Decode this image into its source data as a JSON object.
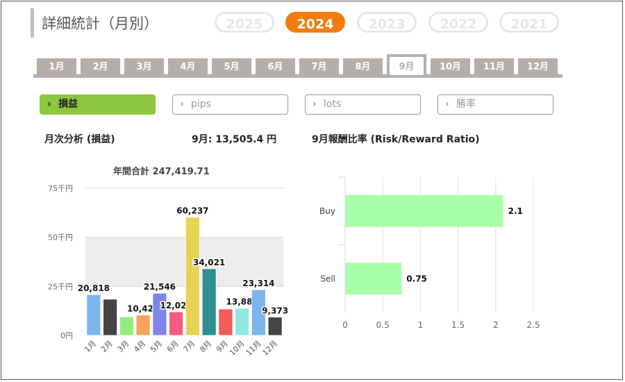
{
  "page": {
    "title": "詳細統計（月別）"
  },
  "years": [
    {
      "label": "2025",
      "active": false
    },
    {
      "label": "2024",
      "active": true
    },
    {
      "label": "2023",
      "active": false
    },
    {
      "label": "2022",
      "active": false
    },
    {
      "label": "2021",
      "active": false
    }
  ],
  "months": [
    {
      "label": "1月",
      "active": false
    },
    {
      "label": "2月",
      "active": false
    },
    {
      "label": "3月",
      "active": false
    },
    {
      "label": "4月",
      "active": false
    },
    {
      "label": "5月",
      "active": false
    },
    {
      "label": "6月",
      "active": false
    },
    {
      "label": "7月",
      "active": false
    },
    {
      "label": "8月",
      "active": false
    },
    {
      "label": "9月",
      "active": true
    },
    {
      "label": "10月",
      "active": false
    },
    {
      "label": "11月",
      "active": false
    },
    {
      "label": "12月",
      "active": false
    }
  ],
  "filters": [
    {
      "label": "損益",
      "active": true
    },
    {
      "label": "pips",
      "active": false
    },
    {
      "label": "lots",
      "active": false
    },
    {
      "label": "勝率",
      "active": false
    }
  ],
  "analysis": {
    "label": "月次分析 (損益)",
    "month_summary": "9月:  13,505.4 円",
    "ratio_title": "9月報酬比率 (Risk/Reward Ratio)"
  },
  "chart_data": [
    {
      "type": "bar",
      "title": "年間合計 247,419.71",
      "categories": [
        "1月",
        "2月",
        "3月",
        "4月",
        "5月",
        "6月",
        "7月",
        "8月",
        "9月",
        "10月",
        "11月",
        "12月"
      ],
      "values": [
        20818,
        18500,
        9500,
        10423,
        21546,
        12029,
        60237,
        34021,
        13500,
        13888,
        23314,
        9373
      ],
      "data_labels": [
        "20,818",
        "",
        "",
        "10,423",
        "21,546",
        "12,029",
        "60,237",
        "34,021",
        "",
        "13,888",
        "23,314",
        "9,373"
      ],
      "colors": [
        "#7cb5ec",
        "#434348",
        "#90ed7d",
        "#f7a35c",
        "#8085e9",
        "#f15c80",
        "#e4d354",
        "#2b908f",
        "#f45b5b",
        "#91e8e1",
        "#7cb5ec",
        "#434348"
      ],
      "yticks": [
        0,
        25000,
        50000,
        75000
      ],
      "ytick_labels": [
        "0円",
        "25千円",
        "50千円",
        "75千円"
      ],
      "ylim": [
        0,
        75000
      ],
      "plot_bands": [
        [
          25000,
          50000
        ]
      ],
      "plot_bands_alt": [
        [
          0,
          25000
        ],
        [
          50000,
          75000
        ]
      ],
      "band_color": "#ececec"
    },
    {
      "type": "bar",
      "orientation": "horizontal",
      "categories": [
        "Buy",
        "Sell"
      ],
      "values": [
        2.1,
        0.75
      ],
      "data_labels": [
        "2.1",
        "0.75"
      ],
      "color": "#a9ffa9",
      "xticks": [
        0,
        0.5,
        1,
        1.5,
        2,
        2.5
      ],
      "xtick_labels": [
        "0",
        "0.5",
        "1",
        "1.5",
        "2",
        "2.5"
      ],
      "xlim": [
        0,
        2.5
      ],
      "grid": true
    }
  ]
}
